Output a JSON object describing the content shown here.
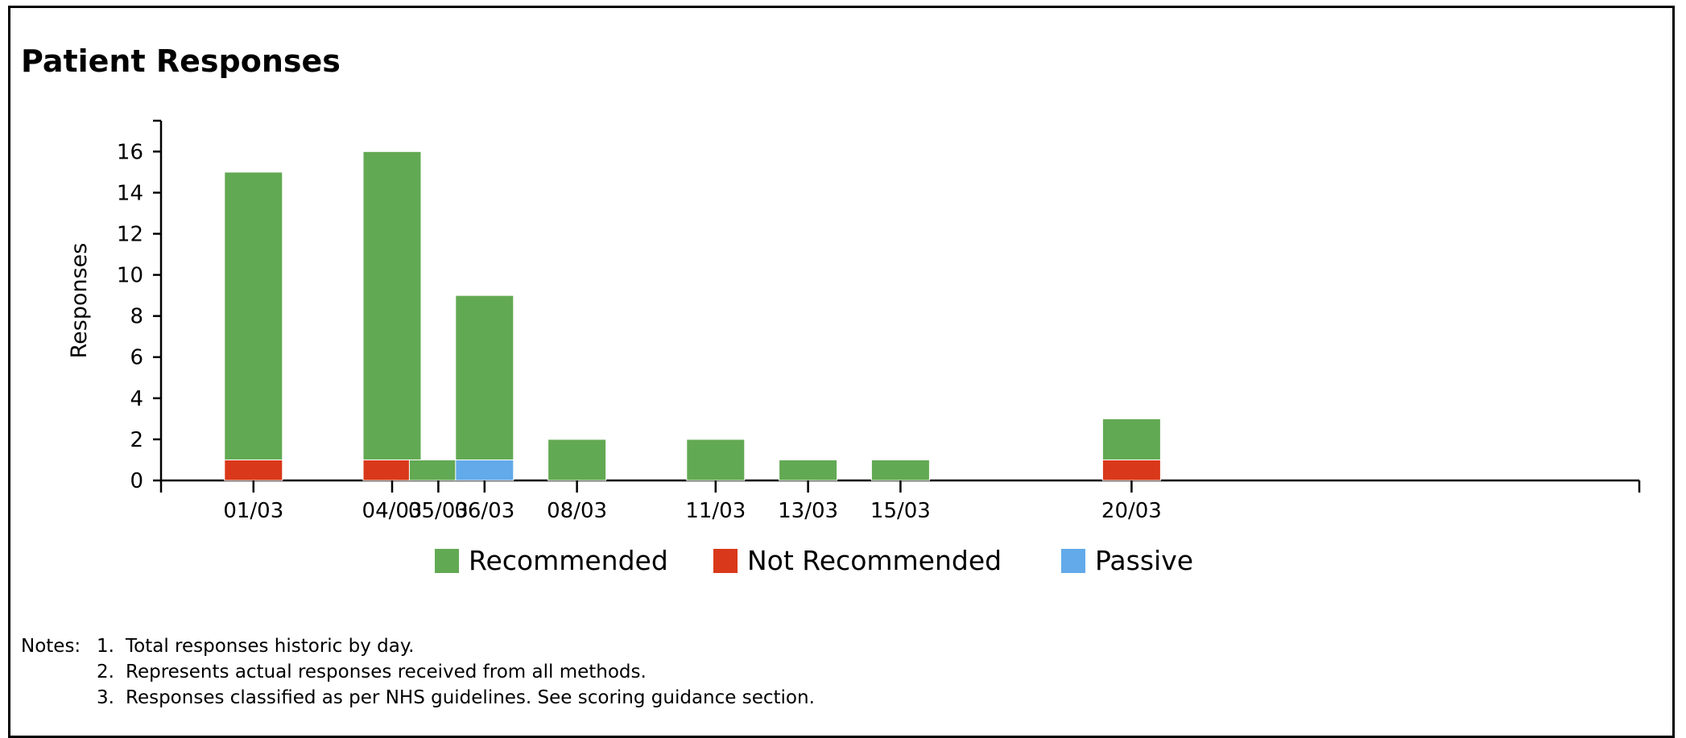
{
  "title": "Patient Responses",
  "chart_data": {
    "type": "bar",
    "stacked": true,
    "title": "Patient Responses",
    "xlabel": "",
    "ylabel": "Responses",
    "ylim": [
      0,
      17.5
    ],
    "yticks": [
      0,
      2,
      4,
      6,
      8,
      10,
      12,
      14,
      16
    ],
    "x_axis": "date",
    "xlim": [
      "28/02",
      "24/03"
    ],
    "categories": [
      "01/03",
      "04/03",
      "05/03",
      "06/03",
      "08/03",
      "11/03",
      "13/03",
      "15/03",
      "20/03"
    ],
    "series": [
      {
        "name": "Not Recommended",
        "color": "#d9391a",
        "values": [
          1,
          1,
          0,
          0,
          0,
          0,
          0,
          0,
          1
        ]
      },
      {
        "name": "Passive",
        "color": "#62aaea",
        "values": [
          0,
          0,
          0,
          1,
          0,
          0,
          0,
          0,
          0
        ]
      },
      {
        "name": "Recommended",
        "color": "#62a953",
        "values": [
          14,
          15,
          1,
          8,
          2,
          2,
          1,
          1,
          2
        ]
      }
    ],
    "legend": {
      "placement": "bottom",
      "order": [
        "Recommended",
        "Not Recommended",
        "Passive"
      ]
    },
    "grid": false
  },
  "notes": {
    "label": "Notes:",
    "items": [
      {
        "num": "1.",
        "text": "Total responses historic by day."
      },
      {
        "num": "2.",
        "text": "Represents actual responses received from all methods."
      },
      {
        "num": "3.",
        "text": "Responses classified as per NHS guidelines. See scoring guidance section."
      }
    ]
  }
}
